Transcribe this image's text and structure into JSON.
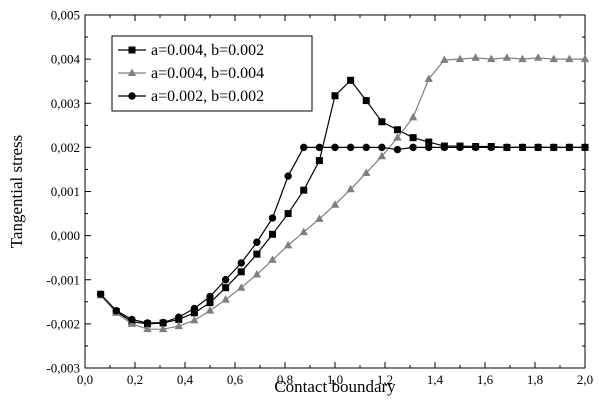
{
  "chart_data": {
    "type": "line",
    "xlabel": "Contact boundary",
    "ylabel": "Tangential stress",
    "xlim": [
      0.0,
      2.0
    ],
    "ylim": [
      -0.003,
      0.005
    ],
    "x_ticks": [
      0.0,
      0.2,
      0.4,
      0.6,
      0.8,
      1.0,
      1.2,
      1.4,
      1.6,
      1.8,
      2.0
    ],
    "x_tick_labels": [
      "0,0",
      "0,2",
      "0,4",
      "0,6",
      "0,8",
      "1,0",
      "1,2",
      "1,4",
      "1,6",
      "1,8",
      "2,0"
    ],
    "y_ticks": [
      -0.003,
      -0.002,
      -0.001,
      0.0,
      0.001,
      0.002,
      0.003,
      0.004,
      0.005
    ],
    "y_tick_labels": [
      "-0,003",
      "-0,002",
      "-0,001",
      "0,000",
      "0,001",
      "0,002",
      "0,003",
      "0,004",
      "0,005"
    ],
    "grid": false,
    "legend_position": "top-left",
    "series": [
      {
        "name": "a=0.004, b=0.002",
        "marker": "square",
        "color": "#000000",
        "x": [
          0.0625,
          0.125,
          0.1875,
          0.25,
          0.3125,
          0.375,
          0.4375,
          0.5,
          0.5625,
          0.625,
          0.6875,
          0.75,
          0.8125,
          0.875,
          0.9375,
          1.0,
          1.0625,
          1.125,
          1.1875,
          1.25,
          1.3125,
          1.375,
          1.4375,
          1.5,
          1.5625,
          1.625,
          1.6875,
          1.75,
          1.8125,
          1.875,
          1.9375,
          2.0
        ],
        "values": [
          -0.00133,
          -0.00172,
          -0.00195,
          -0.002,
          -0.00198,
          -0.0019,
          -0.00175,
          -0.00152,
          -0.00118,
          -0.00082,
          -0.00042,
          3e-05,
          0.0005,
          0.00103,
          0.0017,
          0.00317,
          0.00352,
          0.00306,
          0.00258,
          0.0024,
          0.00222,
          0.00212,
          0.00203,
          0.00203,
          0.00202,
          0.00202,
          0.002,
          0.002,
          0.002,
          0.002,
          0.002,
          0.002
        ]
      },
      {
        "name": "a=0.004, b=0.004",
        "marker": "triangle",
        "color": "#7f7f7f",
        "x": [
          0.0625,
          0.125,
          0.1875,
          0.25,
          0.3125,
          0.375,
          0.4375,
          0.5,
          0.5625,
          0.625,
          0.6875,
          0.75,
          0.8125,
          0.875,
          0.9375,
          1.0,
          1.0625,
          1.125,
          1.1875,
          1.25,
          1.3125,
          1.375,
          1.4375,
          1.5,
          1.5625,
          1.625,
          1.6875,
          1.75,
          1.8125,
          1.875,
          1.9375,
          2.0
        ],
        "values": [
          -0.00135,
          -0.00175,
          -0.002,
          -0.00212,
          -0.00212,
          -0.00205,
          -0.00192,
          -0.0017,
          -0.00145,
          -0.00118,
          -0.00088,
          -0.00055,
          -0.00022,
          8e-05,
          0.00038,
          0.0007,
          0.00105,
          0.00142,
          0.0018,
          0.00222,
          0.00268,
          0.00355,
          0.00398,
          0.004,
          0.00403,
          0.004,
          0.00403,
          0.004,
          0.00403,
          0.004,
          0.004,
          0.004
        ]
      },
      {
        "name": "a=0.002, b=0.002",
        "marker": "circle",
        "color": "#000000",
        "x": [
          0.0625,
          0.125,
          0.1875,
          0.25,
          0.3125,
          0.375,
          0.4375,
          0.5,
          0.5625,
          0.625,
          0.6875,
          0.75,
          0.8125,
          0.875,
          0.9375,
          1.0,
          1.0625,
          1.125,
          1.1875,
          1.25,
          1.3125,
          1.375,
          1.4375,
          1.5,
          1.5625,
          1.625,
          1.6875,
          1.75,
          1.8125,
          1.875,
          1.9375,
          2.0
        ],
        "values": [
          -0.00133,
          -0.0017,
          -0.0019,
          -0.00198,
          -0.00197,
          -0.00185,
          -0.00165,
          -0.00138,
          -0.001,
          -0.00062,
          -0.00015,
          0.0004,
          0.00135,
          0.002,
          0.002,
          0.002,
          0.002,
          0.002,
          0.002,
          0.00195,
          0.002,
          0.002,
          0.002,
          0.002,
          0.002,
          0.002,
          0.002,
          0.002,
          0.002,
          0.002,
          0.002,
          0.002
        ]
      }
    ]
  }
}
